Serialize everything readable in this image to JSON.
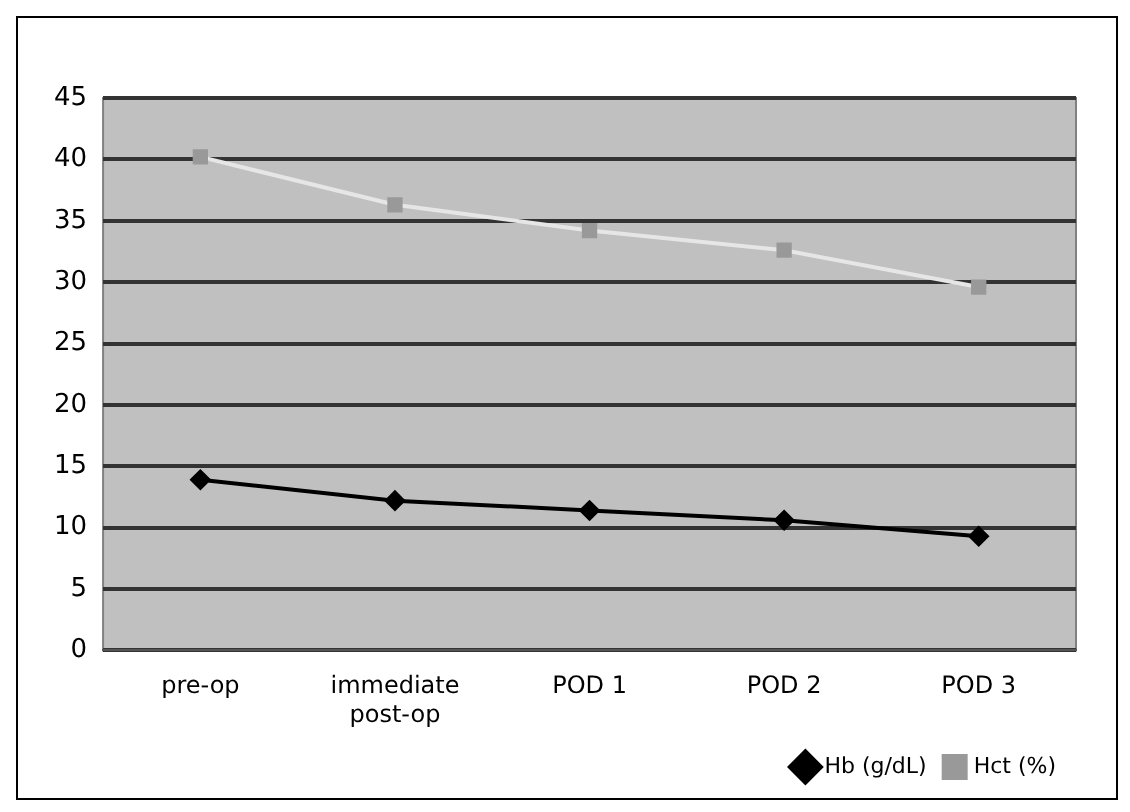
{
  "chart_data": {
    "type": "line",
    "categories": [
      "pre-op",
      "immediate post-op",
      "POD 1",
      "POD 2",
      "POD 3"
    ],
    "series": [
      {
        "name": "Hb (g/dL)",
        "color": "#000000",
        "marker": "diamond",
        "values": [
          13.9,
          12.2,
          11.4,
          10.6,
          9.3
        ]
      },
      {
        "name": "Hct (%)",
        "color": "#e6e6e6",
        "marker": "square",
        "values": [
          40.2,
          36.3,
          34.2,
          32.6,
          29.6
        ]
      }
    ],
    "ylim": [
      0,
      45
    ],
    "yticks": [
      0,
      5,
      10,
      15,
      20,
      25,
      30,
      35,
      40,
      45
    ],
    "grid": "y",
    "legend": "bottom right"
  }
}
